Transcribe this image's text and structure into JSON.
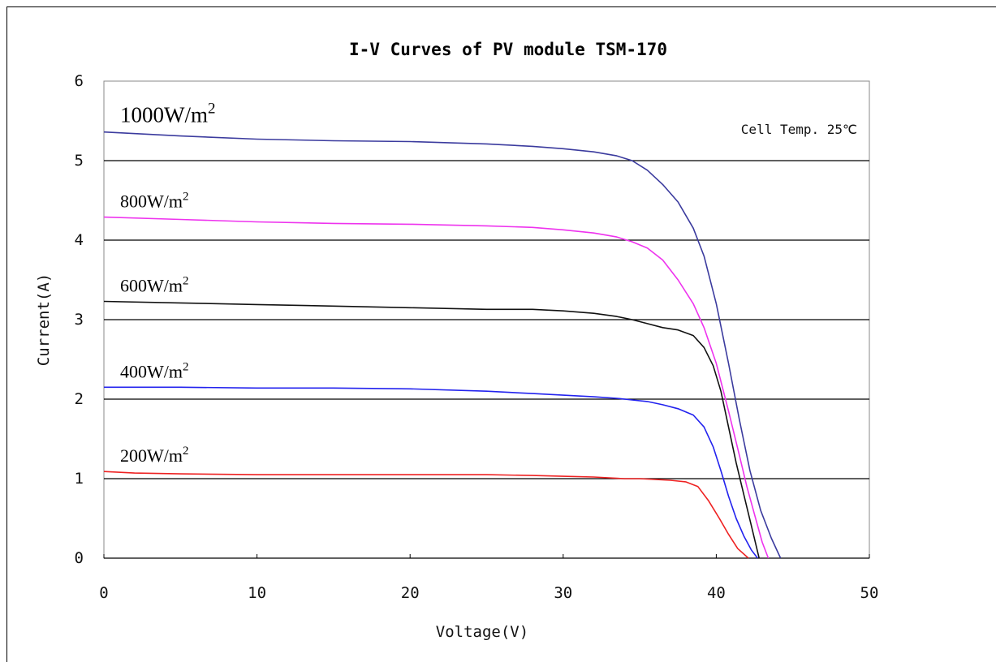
{
  "chart_data": {
    "type": "line",
    "title": "I-V Curves of PV module TSM-170",
    "xlabel": "Voltage(V)",
    "ylabel": "Current(A)",
    "xlim": [
      0,
      50
    ],
    "ylim": [
      0,
      6
    ],
    "xticks": [
      "0",
      "10",
      "20",
      "30",
      "40",
      "50"
    ],
    "yticks": [
      "0",
      "1",
      "2",
      "3",
      "4",
      "5",
      "6"
    ],
    "grid": "horizontal",
    "annotation": "Cell Temp. 25℃",
    "series": [
      {
        "name": "1000W/m2",
        "label_base": "1000W/m",
        "label_sup": "2",
        "color": "#3b3b9e",
        "x": [
          0,
          5,
          10,
          15,
          20,
          25,
          28,
          30,
          32,
          33.5,
          34.5,
          35.5,
          36.5,
          37.5,
          38.5,
          39.2,
          40,
          40.8,
          41.5,
          42.2,
          42.9,
          43.6,
          44.2
        ],
        "y": [
          5.36,
          5.31,
          5.27,
          5.25,
          5.24,
          5.21,
          5.18,
          5.15,
          5.11,
          5.06,
          5.0,
          4.88,
          4.7,
          4.48,
          4.15,
          3.8,
          3.2,
          2.45,
          1.75,
          1.1,
          0.6,
          0.25,
          0
        ]
      },
      {
        "name": "800W/m2",
        "label_base": "800W/m",
        "label_sup": "2",
        "color": "#ee33ee",
        "x": [
          0,
          5,
          10,
          15,
          20,
          25,
          28,
          30,
          32,
          33.5,
          34.5,
          35.5,
          36.5,
          37.5,
          38.5,
          39.2,
          40,
          40.8,
          41.5,
          42,
          42.5,
          43,
          43.4
        ],
        "y": [
          4.29,
          4.26,
          4.23,
          4.21,
          4.2,
          4.18,
          4.16,
          4.13,
          4.09,
          4.04,
          3.98,
          3.9,
          3.75,
          3.5,
          3.2,
          2.9,
          2.45,
          1.85,
          1.3,
          0.9,
          0.55,
          0.2,
          0
        ]
      },
      {
        "name": "600W/m2",
        "label_base": "600W/m",
        "label_sup": "2",
        "color": "#111111",
        "x": [
          0,
          5,
          10,
          15,
          20,
          25,
          28,
          30,
          32,
          33.5,
          34.5,
          35.5,
          36.5,
          37.5,
          38.5,
          39.2,
          39.8,
          40.3,
          40.8,
          41.3,
          41.8,
          42.3,
          42.8
        ],
        "y": [
          3.23,
          3.21,
          3.19,
          3.17,
          3.15,
          3.13,
          3.13,
          3.11,
          3.08,
          3.04,
          3.0,
          2.95,
          2.9,
          2.87,
          2.8,
          2.65,
          2.42,
          2.1,
          1.65,
          1.2,
          0.8,
          0.4,
          0
        ]
      },
      {
        "name": "400W/m2",
        "label_base": "400W/m",
        "label_sup": "2",
        "color": "#2222ee",
        "x": [
          0,
          5,
          10,
          15,
          20,
          25,
          28,
          30,
          32,
          33.5,
          34.5,
          35.5,
          36.5,
          37.5,
          38.5,
          39.2,
          39.8,
          40.3,
          40.8,
          41.3,
          41.8,
          42.3,
          42.7
        ],
        "y": [
          2.15,
          2.15,
          2.14,
          2.14,
          2.13,
          2.1,
          2.07,
          2.05,
          2.03,
          2.01,
          1.99,
          1.97,
          1.93,
          1.88,
          1.8,
          1.65,
          1.4,
          1.1,
          0.78,
          0.5,
          0.28,
          0.1,
          0
        ]
      },
      {
        "name": "200W/m2",
        "label_base": "200W/m",
        "label_sup": "2",
        "color": "#ee2222",
        "x": [
          0,
          2,
          5,
          10,
          15,
          20,
          25,
          28,
          30,
          32,
          33,
          34,
          35,
          36,
          37,
          38,
          38.8,
          39.5,
          40.2,
          40.8,
          41.4,
          42.1
        ],
        "y": [
          1.09,
          1.07,
          1.06,
          1.05,
          1.05,
          1.05,
          1.05,
          1.04,
          1.03,
          1.02,
          1.01,
          1.0,
          1.0,
          0.99,
          0.98,
          0.96,
          0.9,
          0.72,
          0.5,
          0.3,
          0.12,
          0
        ]
      }
    ]
  }
}
